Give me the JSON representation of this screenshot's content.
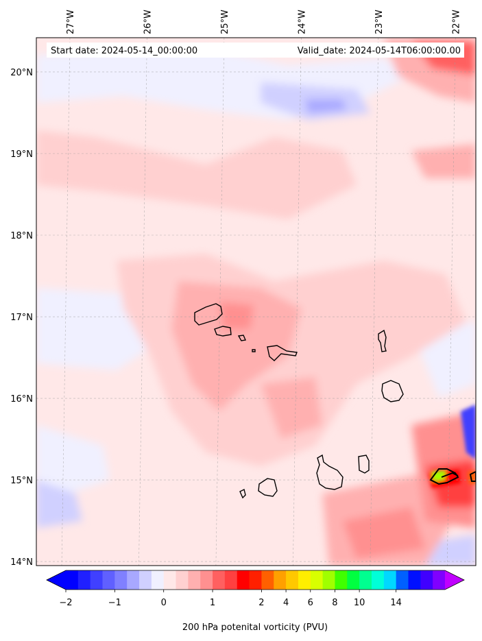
{
  "header": {
    "start_date": "Start date: 2024-05-14_00:00:00",
    "valid_date": "Valid_date: 2024-05-14T06:00:00.00"
  },
  "map": {
    "lon_ticks": [
      "27°W",
      "26°W",
      "25°W",
      "24°W",
      "23°W",
      "22°W"
    ],
    "lat_ticks": [
      "20°N",
      "19°N",
      "18°N",
      "17°N",
      "16°N",
      "15°N",
      "14°N"
    ],
    "lon_values": [
      -27,
      -26,
      -25,
      -24,
      -23,
      -22
    ],
    "lat_values": [
      20,
      19,
      18,
      17,
      16,
      15,
      14
    ],
    "extent": {
      "lon_min": -27.4,
      "lon_max": -21.7,
      "lat_min": 13.95,
      "lat_max": 20.42
    }
  },
  "colorbar": {
    "tick_labels": [
      "−2",
      "−1",
      "0",
      "1",
      "2",
      "4",
      "6",
      "8",
      "10",
      "14"
    ],
    "label": "200 hPa potenital vorticity (PVU)",
    "colors": [
      "#0000ff",
      "#2020ff",
      "#4040ff",
      "#6060ff",
      "#8080ff",
      "#a8a8ff",
      "#d0d0ff",
      "#f0f0ff",
      "#ffe8e8",
      "#ffd0d0",
      "#ffb0b0",
      "#ff9090",
      "#ff6060",
      "#ff4040",
      "#ff0000",
      "#ff2000",
      "#ff6000",
      "#ffa000",
      "#ffc800",
      "#ffee00",
      "#d8ff00",
      "#a0ff00",
      "#40ff00",
      "#00ff40",
      "#00ff90",
      "#00ffd8",
      "#00d8ff",
      "#0060ff",
      "#0010ff",
      "#4000ff",
      "#8000ff"
    ],
    "extend_low_color": "#0000ff",
    "extend_high_color": "#c000ff"
  }
}
